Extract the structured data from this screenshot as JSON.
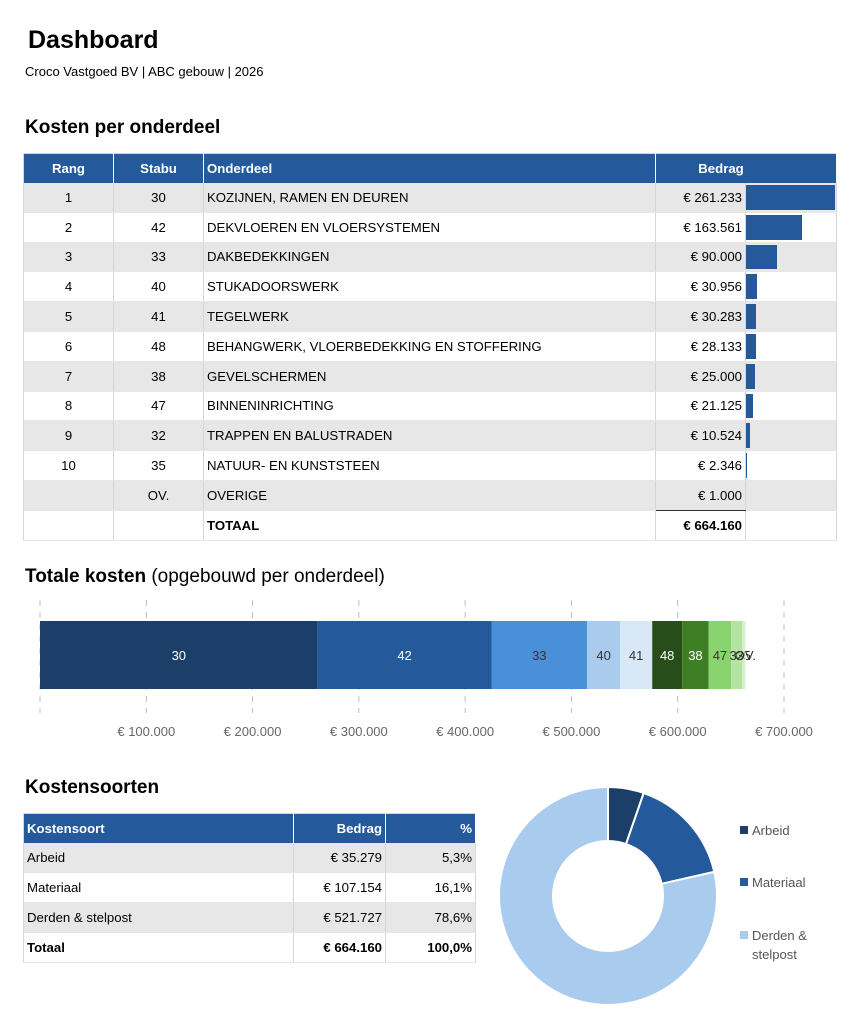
{
  "header": {
    "title": "Dashboard",
    "subtitle": "Croco Vastgoed BV | ABC gebouw | 2026"
  },
  "section_costs": {
    "title": "Kosten per onderdeel"
  },
  "section_total": {
    "title_bold": "Totale kosten",
    "title_light": "(opgebouwd per onderdeel)"
  },
  "section_types": {
    "title": "Kostensoorten"
  },
  "costs_table": {
    "headers": {
      "rank": "Rang",
      "stabu": "Stabu",
      "part": "Onderdeel",
      "amount": "Bedrag"
    },
    "rows": [
      {
        "rank": "1",
        "stabu": "30",
        "part": "KOZIJNEN, RAMEN EN DEUREN",
        "amount": "€ 261.233",
        "value": 261233
      },
      {
        "rank": "2",
        "stabu": "42",
        "part": "DEKVLOEREN EN VLOERSYSTEMEN",
        "amount": "€ 163.561",
        "value": 163561
      },
      {
        "rank": "3",
        "stabu": "33",
        "part": "DAKBEDEKKINGEN",
        "amount": "€ 90.000",
        "value": 90000
      },
      {
        "rank": "4",
        "stabu": "40",
        "part": "STUKADOORSWERK",
        "amount": "€ 30.956",
        "value": 30956
      },
      {
        "rank": "5",
        "stabu": "41",
        "part": "TEGELWERK",
        "amount": "€ 30.283",
        "value": 30283
      },
      {
        "rank": "6",
        "stabu": "48",
        "part": "BEHANGWERK, VLOERBEDEKKING EN STOFFERING",
        "amount": "€ 28.133",
        "value": 28133
      },
      {
        "rank": "7",
        "stabu": "38",
        "part": "GEVELSCHERMEN",
        "amount": "€ 25.000",
        "value": 25000
      },
      {
        "rank": "8",
        "stabu": "47",
        "part": "BINNENINRICHTING",
        "amount": "€ 21.125",
        "value": 21125
      },
      {
        "rank": "9",
        "stabu": "32",
        "part": "TRAPPEN EN BALUSTRADEN",
        "amount": "€ 10.524",
        "value": 10524
      },
      {
        "rank": "10",
        "stabu": "35",
        "part": "NATUUR- EN KUNSTSTEEN",
        "amount": "€ 2.346",
        "value": 2346
      }
    ],
    "other": {
      "stabu": "OV.",
      "part": "OVERIGE",
      "amount": "€ 1.000"
    },
    "total": {
      "part": "TOTAAL",
      "amount": "€ 664.160"
    }
  },
  "types_table": {
    "headers": {
      "type": "Kostensoort",
      "amount": "Bedrag",
      "pct": "%"
    },
    "rows": [
      {
        "type": "Arbeid",
        "amount": "€ 35.279",
        "pct": "5,3%"
      },
      {
        "type": "Materiaal",
        "amount": "€ 107.154",
        "pct": "16,1%"
      },
      {
        "type": "Derden & stelpost",
        "amount": "€ 521.727",
        "pct": "78,6%"
      }
    ],
    "total": {
      "type": "Totaal",
      "amount": "€ 664.160",
      "pct": "100,0%"
    }
  },
  "chart_data": [
    {
      "type": "bar",
      "orientation": "horizontal-stacked",
      "title": "Totale kosten (opgebouwd per onderdeel)",
      "series": [
        {
          "name": "30",
          "value": 261233,
          "color": "#1b3f69"
        },
        {
          "name": "42",
          "value": 163561,
          "color": "#245a9c"
        },
        {
          "name": "33",
          "value": 90000,
          "color": "#4a90d9"
        },
        {
          "name": "40",
          "value": 30956,
          "color": "#a9cbee"
        },
        {
          "name": "41",
          "value": 30283,
          "color": "#d9e8f7"
        },
        {
          "name": "48",
          "value": 28133,
          "color": "#274e1a"
        },
        {
          "name": "38",
          "value": 25000,
          "color": "#3e7f26"
        },
        {
          "name": "47",
          "value": 21125,
          "color": "#8ad46f"
        },
        {
          "name": "32",
          "value": 10524,
          "color": "#b5e3a1"
        },
        {
          "name": "35",
          "value": 2346,
          "color": "#d6f0c9"
        },
        {
          "name": "OV.",
          "value": 1000,
          "color": "#eaf6e3"
        }
      ],
      "xlim": [
        0,
        700000
      ],
      "ticks": [
        100000,
        200000,
        300000,
        400000,
        500000,
        600000,
        700000
      ],
      "tick_labels": [
        "€ 100.000",
        "€ 200.000",
        "€ 300.000",
        "€ 400.000",
        "€ 500.000",
        "€ 600.000",
        "€ 700.000"
      ],
      "grid": "dashed-vertical"
    },
    {
      "type": "pie",
      "variant": "donut",
      "slices": [
        {
          "name": "Arbeid",
          "value": 35279,
          "color": "#1b3f69"
        },
        {
          "name": "Materiaal",
          "value": 107154,
          "color": "#245a9c"
        },
        {
          "name": "Derden & stelpost",
          "value": 521727,
          "color": "#a9cbee"
        }
      ],
      "legend": "right",
      "legend_labels": [
        "Arbeid",
        "Materiaal",
        "Derden &",
        "stelpost"
      ]
    }
  ]
}
